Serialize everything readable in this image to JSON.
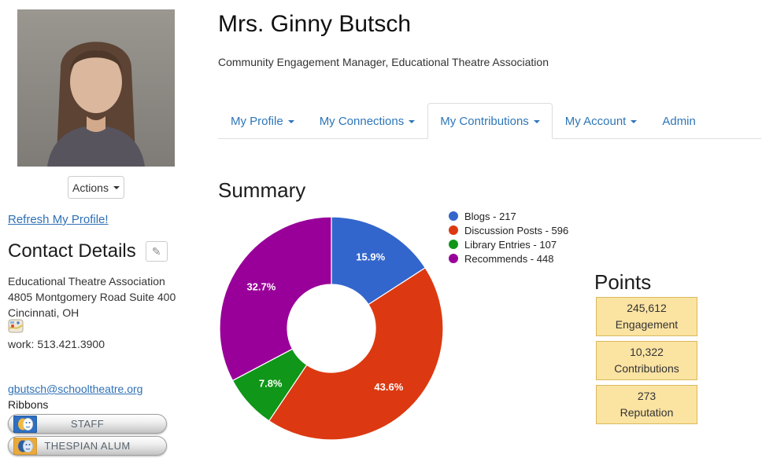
{
  "profile": {
    "name": "Mrs. Ginny Butsch",
    "subtitle": "Community Engagement Manager, Educational Theatre Association",
    "actions_label": "Actions",
    "refresh_link": "Refresh My Profile!"
  },
  "contact": {
    "heading": "Contact Details",
    "org": "Educational Theatre Association",
    "address": "4805 Montgomery Road Suite 400",
    "city": "Cincinnati, OH",
    "phone": "work: 513.421.3900",
    "email": "gbutsch@schooltheatre.org",
    "ribbons_label": "Ribbons",
    "ribbons": [
      {
        "label": "STAFF"
      },
      {
        "label": "THESPIAN ALUM"
      }
    ]
  },
  "tabs": [
    {
      "label": "My Profile",
      "dropdown": true,
      "active": false
    },
    {
      "label": "My Connections",
      "dropdown": true,
      "active": false
    },
    {
      "label": "My Contributions",
      "dropdown": true,
      "active": true
    },
    {
      "label": "My Account",
      "dropdown": true,
      "active": false
    },
    {
      "label": "Admin",
      "dropdown": false,
      "active": false
    }
  ],
  "summary": {
    "heading": "Summary"
  },
  "chart_data": {
    "type": "pie",
    "donut": true,
    "title": "Summary",
    "categories": [
      "Blogs",
      "Discussion Posts",
      "Library Entries",
      "Recommends"
    ],
    "values": [
      217,
      596,
      107,
      448
    ],
    "percent_labels": [
      "15.9%",
      "43.6%",
      "7.8%",
      "32.7%"
    ],
    "colors": [
      "#3366CC",
      "#DC3912",
      "#109618",
      "#990099"
    ],
    "legend": [
      "Blogs - 217",
      "Discussion Posts - 596",
      "Library Entries - 107",
      "Recommends - 448"
    ],
    "legend_position": "right"
  },
  "points": {
    "heading": "Points",
    "boxes": [
      {
        "value": "245,612",
        "label": "Engagement"
      },
      {
        "value": "10,322",
        "label": "Contributions"
      },
      {
        "value": "273",
        "label": "Reputation"
      }
    ]
  },
  "icons": {
    "edit": "✎"
  },
  "colors": {
    "link_blue": "#2e76b8",
    "points_box_bg": "#fbe3a2",
    "points_box_border": "#d9b95e",
    "tab_border": "#dddddd"
  }
}
